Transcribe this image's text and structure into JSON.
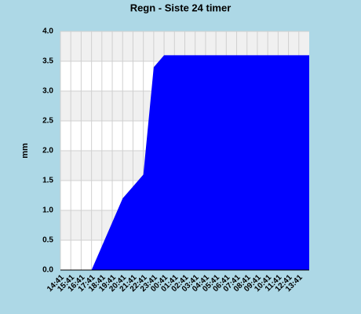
{
  "chart_data": {
    "type": "area",
    "title": "Regn - Siste 24 timer",
    "y_label": "mm",
    "categories": [
      "14:41",
      "15:41",
      "16:41",
      "17:41",
      "18:41",
      "19:41",
      "20:41",
      "21:41",
      "22:41",
      "23:41",
      "00:41",
      "01:41",
      "02:41",
      "03:41",
      "04:41",
      "05:41",
      "06:41",
      "07:41",
      "08:41",
      "09:41",
      "10:41",
      "11:41",
      "12:41",
      "13:41"
    ],
    "values": [
      0,
      0,
      0,
      0,
      0.4,
      0.8,
      1.2,
      1.4,
      1.6,
      3.4,
      3.6,
      3.6,
      3.6,
      3.6,
      3.6,
      3.6,
      3.6,
      3.6,
      3.6,
      3.6,
      3.6,
      3.6,
      3.6,
      3.6
    ],
    "color": "#0000ff",
    "ylim": [
      0,
      4
    ],
    "yticks": [
      {
        "value": 0,
        "label": "0.0"
      },
      {
        "value": 0.5,
        "label": "0.5"
      },
      {
        "value": 1,
        "label": "1.0"
      },
      {
        "value": 1.5,
        "label": "1.5"
      },
      {
        "value": 2,
        "label": "2.0"
      },
      {
        "value": 2.5,
        "label": "2.5"
      },
      {
        "value": 3,
        "label": "3.0"
      },
      {
        "value": 3.5,
        "label": "3.5"
      },
      {
        "value": 4,
        "label": "4.0"
      }
    ],
    "grid": true
  }
}
